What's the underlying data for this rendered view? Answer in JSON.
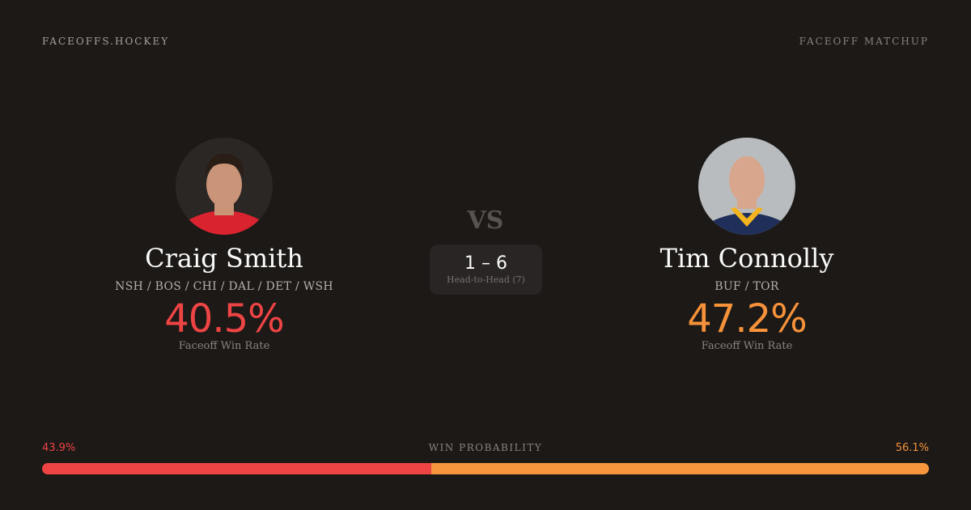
{
  "header": {
    "brand": "FACEOFFS.HOCKEY",
    "page_type": "FACEOFF MATCHUP"
  },
  "player1": {
    "name": "Craig Smith",
    "teams": "NSH / BOS / CHI / DAL / DET / WSH",
    "win_rate": "40.5%",
    "win_rate_label": "Faceoff Win Rate",
    "color": "#ef4444"
  },
  "player2": {
    "name": "Tim Connolly",
    "teams": "BUF / TOR",
    "win_rate": "47.2%",
    "win_rate_label": "Faceoff Win Rate",
    "color": "#f7923a"
  },
  "versus": {
    "label": "VS",
    "score": "1 – 6",
    "head_to_head_label": "Head-to-Head (7)"
  },
  "win_probability": {
    "label": "WIN PROBABILITY",
    "player1": "43.9%",
    "player2": "56.1%",
    "player1_value": 43.9,
    "player2_value": 56.1
  }
}
